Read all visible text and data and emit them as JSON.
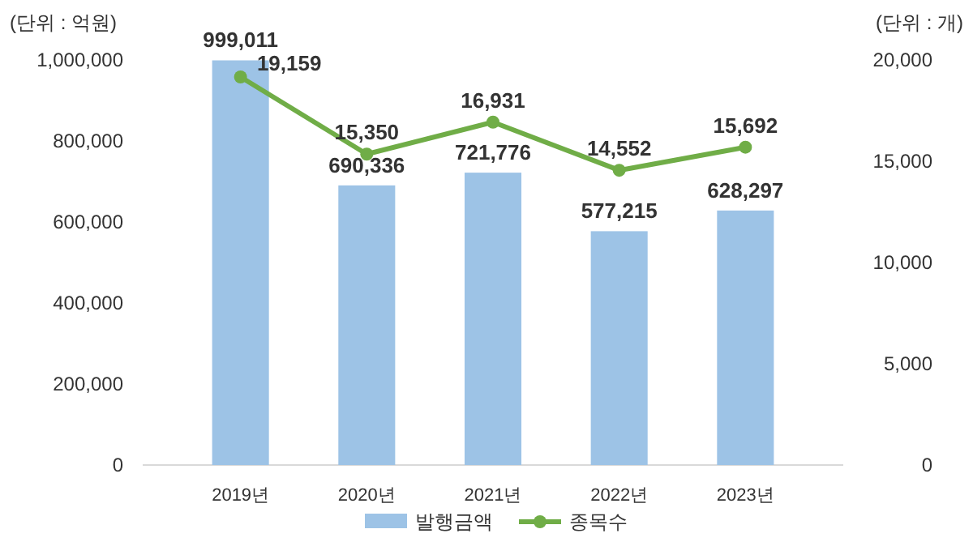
{
  "chart_data": {
    "type": "bar",
    "ylabel": "(단위 : 억원)",
    "y2label": "(단위 : 개)",
    "categories": [
      "2019년",
      "2020년",
      "2021년",
      "2022년",
      "2023년"
    ],
    "series": [
      {
        "name": "발행금액",
        "color": "#9dc3e6",
        "values": [
          999011,
          690336,
          721776,
          577215,
          628297
        ],
        "value_labels": [
          "999,011",
          "690,336",
          "721,776",
          "577,215",
          "628,297"
        ]
      },
      {
        "name": "종목수",
        "type": "line",
        "axis": "y2",
        "color": "#70ad47",
        "marker": "circle",
        "values": [
          19159,
          15350,
          16931,
          14552,
          15692
        ],
        "value_labels": [
          "19,159",
          "15,350",
          "16,931",
          "14,552",
          "15,692"
        ]
      }
    ],
    "ylim": [
      0,
      1000000
    ],
    "yticks": [
      {
        "value": 0,
        "label": "0"
      },
      {
        "value": 200000,
        "label": "200,000"
      },
      {
        "value": 400000,
        "label": "400,000"
      },
      {
        "value": 600000,
        "label": "600,000"
      },
      {
        "value": 800000,
        "label": "800,000"
      },
      {
        "value": 1000000,
        "label": "1,000,000"
      }
    ],
    "y2lim": [
      0,
      20000
    ],
    "y2ticks": [
      {
        "value": 0,
        "label": "0"
      },
      {
        "value": 5000,
        "label": "5,000"
      },
      {
        "value": 10000,
        "label": "10,000"
      },
      {
        "value": 15000,
        "label": "15,000"
      },
      {
        "value": 20000,
        "label": "20,000"
      }
    ],
    "legend": "bottom",
    "grid": false
  }
}
